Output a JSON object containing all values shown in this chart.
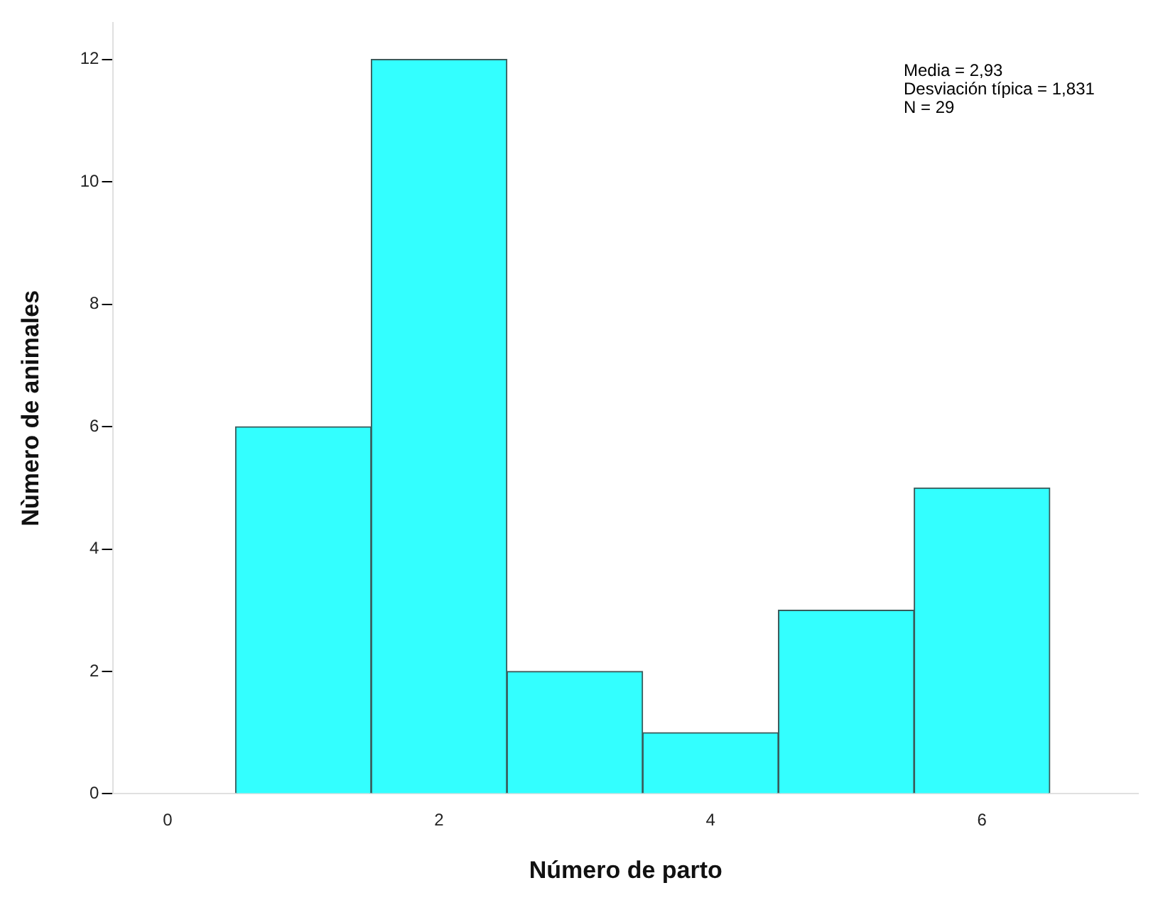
{
  "chart_data": {
    "type": "histogram",
    "xlabel": "Número de parto",
    "ylabel": "Nùmero de animales",
    "bins": [
      0.5,
      1.5,
      2.5,
      3.5,
      4.5,
      5.5,
      6.5
    ],
    "values": [
      6,
      12,
      2,
      1,
      3,
      5
    ],
    "color": "#33ffff",
    "xlim": [
      -0.4,
      7.15
    ],
    "xticks": [
      0,
      2,
      4,
      6
    ],
    "ylim": [
      0,
      12.6
    ],
    "yticks": [
      0,
      2,
      4,
      6,
      8,
      10,
      12
    ],
    "grid": false,
    "legend": false,
    "annotations": [
      "Media = 2,93",
      "Desviación típica = 1,831",
      "N = 29"
    ]
  }
}
